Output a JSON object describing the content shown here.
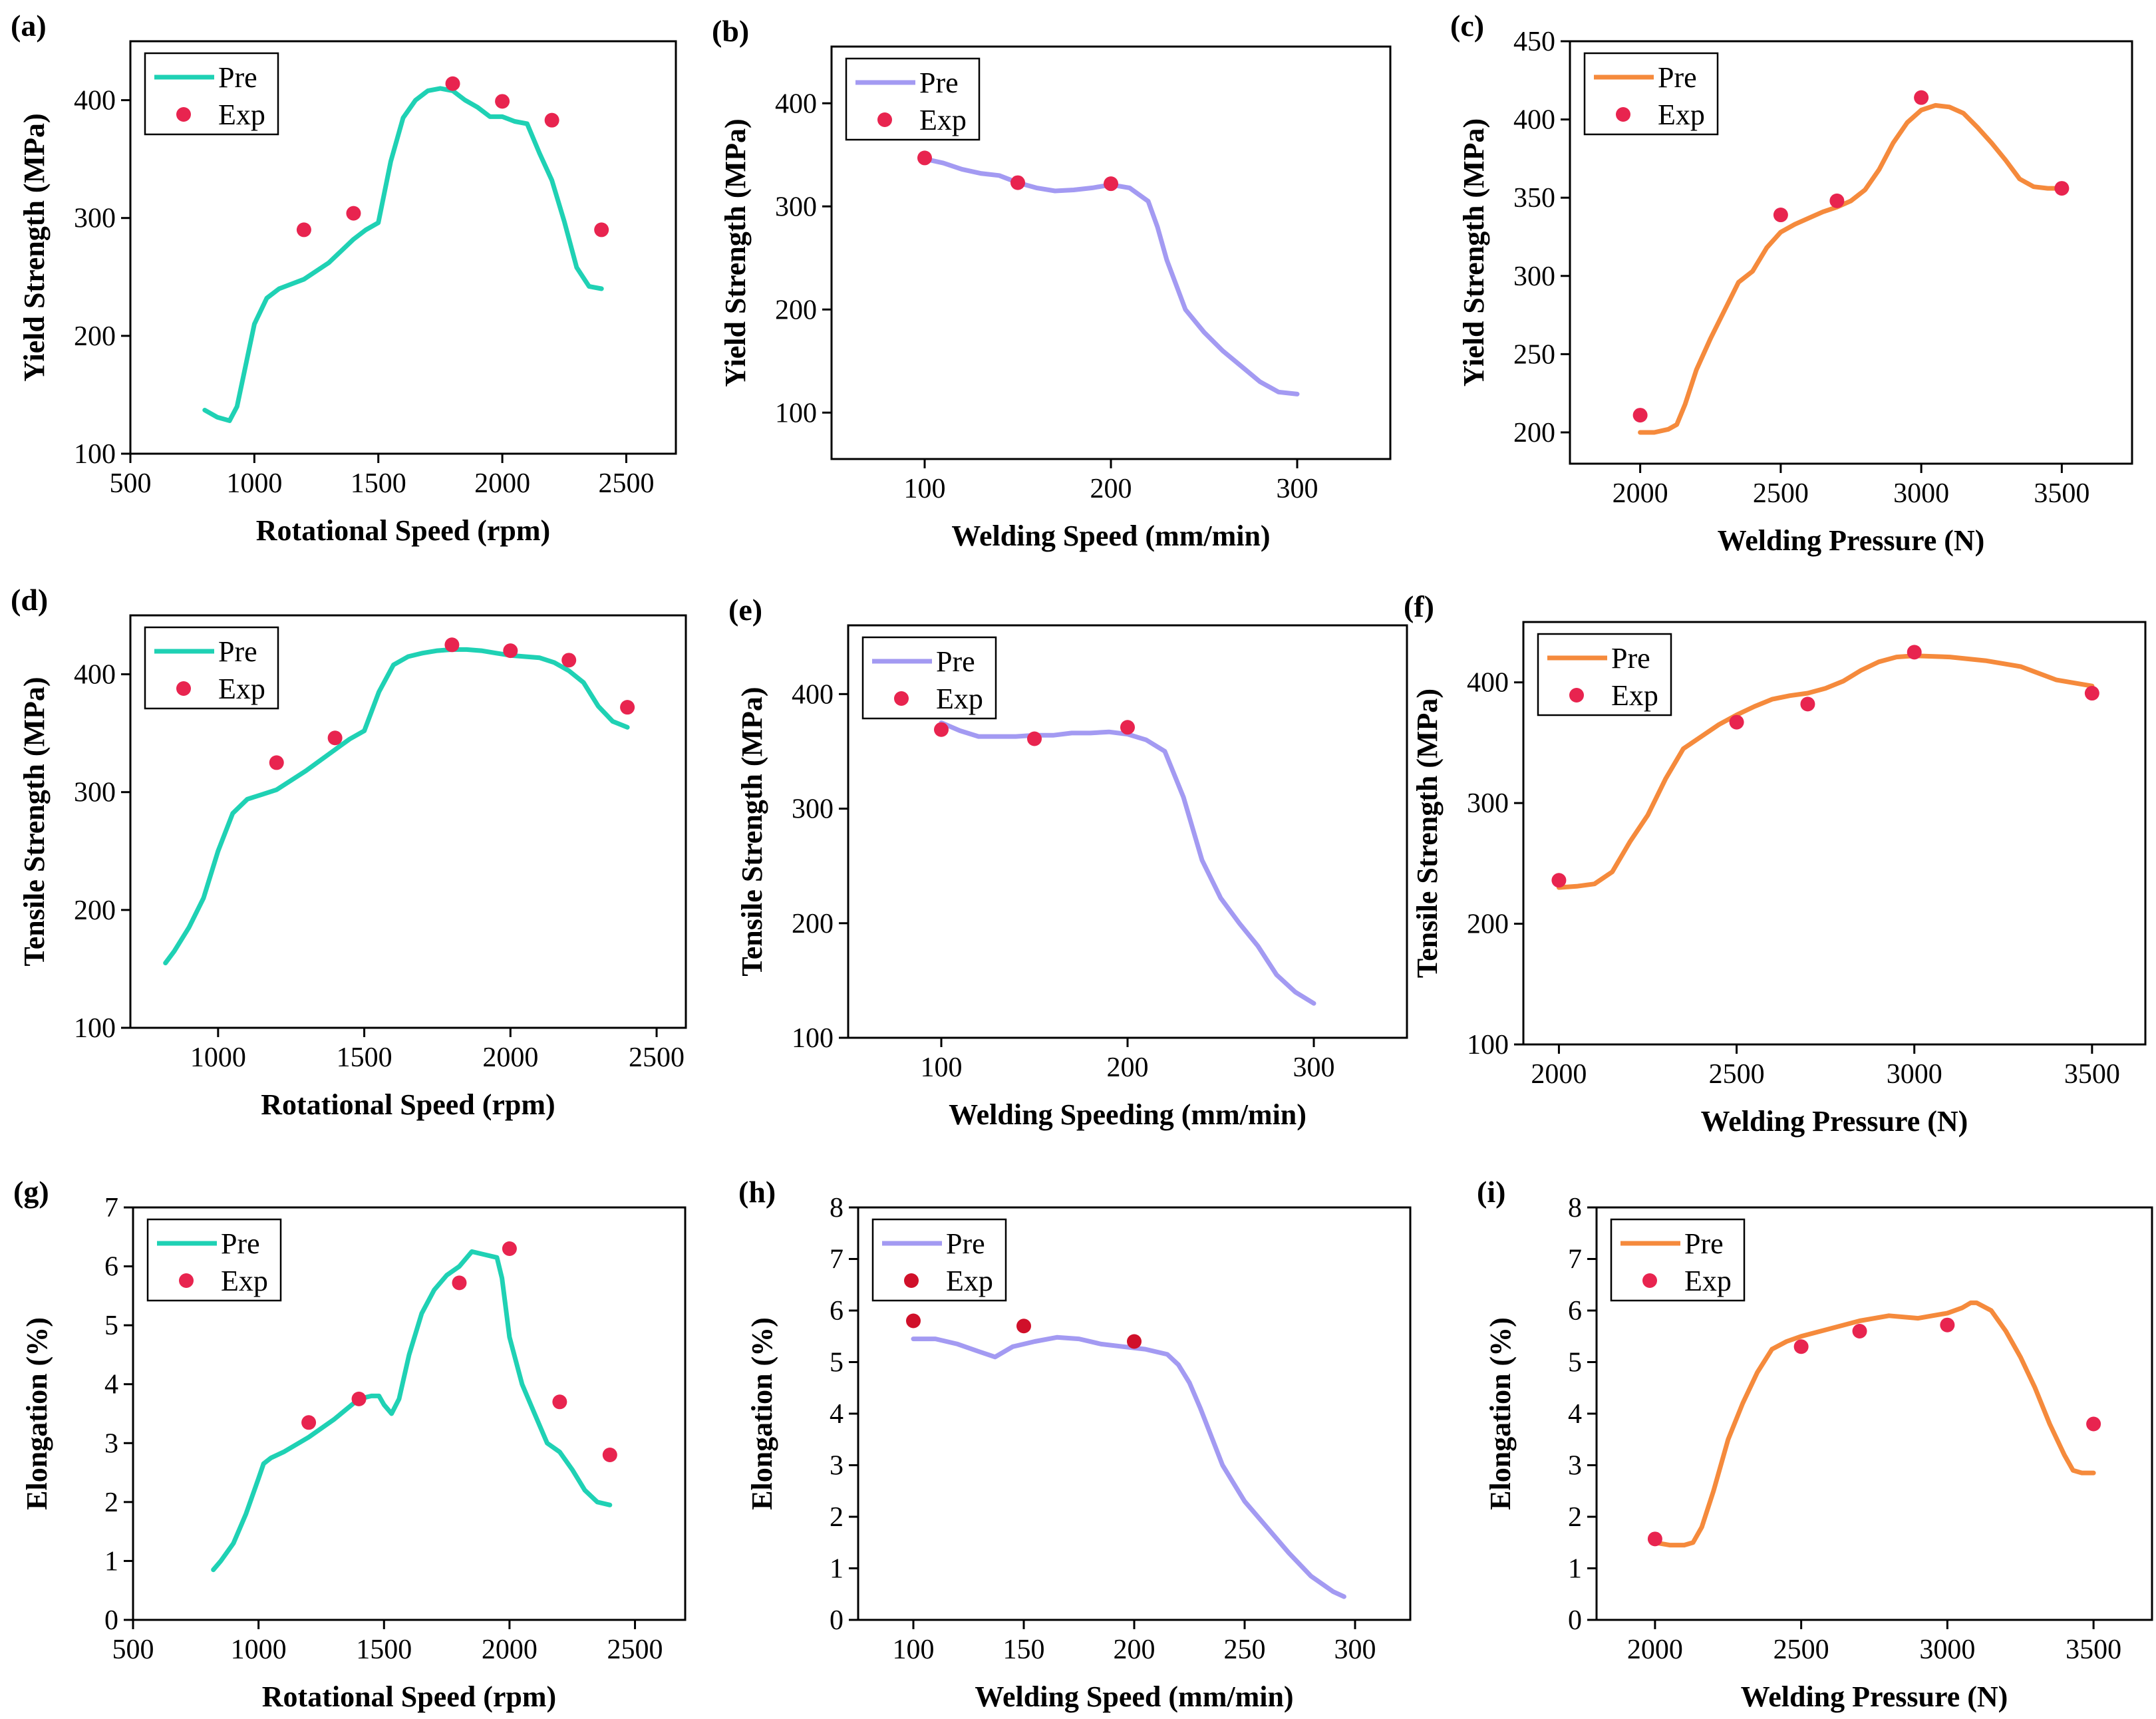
{
  "figure": {
    "colors": {
      "teal": "#1fd1b4",
      "lavender": "#a39af2",
      "orange": "#f58a3c",
      "exp": "#e8244f",
      "exp_dark": "#d0102a"
    },
    "legend": {
      "pre": "Pre",
      "exp": "Exp"
    }
  },
  "chart_data": [
    {
      "panel": "(a)",
      "type": "line+scatter",
      "color": "teal",
      "legend_pos": "top-left",
      "xlabel": "Rotational Speed (rpm)",
      "ylabel": "Yield Strength (MPa)",
      "xlim": [
        500,
        2700
      ],
      "ylim": [
        100,
        450
      ],
      "xticks": [
        500,
        1000,
        1500,
        2000,
        2500
      ],
      "yticks": [
        100,
        200,
        300,
        400
      ],
      "series": [
        {
          "name": "Pre",
          "x": [
            800,
            850,
            900,
            930,
            960,
            1000,
            1050,
            1100,
            1150,
            1200,
            1300,
            1400,
            1450,
            1500,
            1550,
            1600,
            1650,
            1700,
            1750,
            1800,
            1850,
            1900,
            1950,
            2000,
            2050,
            2100,
            2150,
            2200,
            2250,
            2300,
            2350,
            2400
          ],
          "y": [
            137,
            131,
            128,
            140,
            170,
            210,
            232,
            240,
            244,
            248,
            262,
            282,
            290,
            296,
            348,
            385,
            400,
            408,
            410,
            408,
            400,
            394,
            386,
            386,
            382,
            380,
            355,
            332,
            297,
            258,
            242,
            240
          ]
        },
        {
          "name": "Exp",
          "x": [
            1200,
            1400,
            1800,
            2000,
            2200,
            2400
          ],
          "y": [
            290,
            304,
            414,
            399,
            383,
            290
          ]
        }
      ]
    },
    {
      "panel": "(b)",
      "type": "line+scatter",
      "color": "lavender",
      "legend_pos": "top-left",
      "xlabel": "Welding Speed (mm/min)",
      "ylabel": "Yield Strength (MPa)",
      "xlim": [
        50,
        350
      ],
      "ylim": [
        55,
        455
      ],
      "xticks": [
        100,
        200,
        300
      ],
      "yticks": [
        100,
        200,
        300,
        400
      ],
      "series": [
        {
          "name": "Pre",
          "x": [
            100,
            110,
            120,
            130,
            140,
            150,
            160,
            170,
            180,
            190,
            200,
            210,
            220,
            225,
            230,
            240,
            250,
            260,
            270,
            280,
            290,
            300
          ],
          "y": [
            346,
            342,
            336,
            332,
            330,
            323,
            318,
            315,
            316,
            318,
            321,
            318,
            305,
            280,
            248,
            200,
            178,
            160,
            145,
            130,
            120,
            118
          ]
        },
        {
          "name": "Exp",
          "x": [
            100,
            150,
            200
          ],
          "y": [
            347,
            323,
            322
          ]
        }
      ]
    },
    {
      "panel": "(c)",
      "type": "line+scatter",
      "color": "orange",
      "legend_pos": "top-left",
      "xlabel": "Welding Pressure (N)",
      "ylabel": "Yield Strength (MPa)",
      "xlim": [
        1750,
        3750
      ],
      "ylim": [
        180,
        450
      ],
      "xticks": [
        2000,
        2500,
        3000,
        3500
      ],
      "yticks": [
        200,
        250,
        300,
        350,
        400,
        450
      ],
      "series": [
        {
          "name": "Pre",
          "x": [
            2000,
            2050,
            2100,
            2130,
            2160,
            2200,
            2250,
            2300,
            2350,
            2400,
            2450,
            2500,
            2550,
            2600,
            2650,
            2700,
            2750,
            2800,
            2850,
            2900,
            2950,
            3000,
            3050,
            3100,
            3150,
            3200,
            3250,
            3300,
            3350,
            3400,
            3450,
            3480
          ],
          "y": [
            200,
            200,
            202,
            205,
            218,
            240,
            260,
            278,
            296,
            303,
            318,
            328,
            333,
            337,
            341,
            344,
            348,
            355,
            368,
            385,
            398,
            406,
            409,
            408,
            404,
            395,
            385,
            374,
            362,
            357,
            356,
            356
          ]
        },
        {
          "name": "Exp",
          "x": [
            2000,
            2500,
            2700,
            3000,
            3500
          ],
          "y": [
            211,
            339,
            348,
            414,
            356
          ]
        }
      ]
    },
    {
      "panel": "(d)",
      "type": "line+scatter",
      "color": "teal",
      "legend_pos": "top-left",
      "xlabel": "Rotational Speed (rpm)",
      "ylabel": "Tensile Strength (MPa)",
      "xlim": [
        700,
        2600
      ],
      "ylim": [
        100,
        450
      ],
      "xticks": [
        1000,
        1500,
        2000,
        2500
      ],
      "yticks": [
        100,
        200,
        300,
        400
      ],
      "series": [
        {
          "name": "Pre",
          "x": [
            820,
            850,
            900,
            950,
            1000,
            1050,
            1100,
            1150,
            1200,
            1300,
            1400,
            1450,
            1500,
            1550,
            1600,
            1650,
            1700,
            1750,
            1800,
            1850,
            1900,
            1950,
            2000,
            2050,
            2100,
            2150,
            2200,
            2250,
            2300,
            2350,
            2400
          ],
          "y": [
            155,
            165,
            185,
            210,
            250,
            282,
            294,
            298,
            302,
            318,
            336,
            345,
            352,
            385,
            408,
            415,
            418,
            420,
            421,
            421,
            420,
            418,
            416,
            415,
            414,
            410,
            403,
            393,
            373,
            360,
            355
          ]
        },
        {
          "name": "Exp",
          "x": [
            1200,
            1400,
            1800,
            2000,
            2200,
            2400
          ],
          "y": [
            325,
            346,
            425,
            420,
            412,
            372
          ]
        }
      ]
    },
    {
      "panel": "(e)",
      "type": "line+scatter",
      "color": "lavender",
      "legend_pos": "top-left",
      "xlabel": "Welding Speeding (mm/min)",
      "ylabel": "Tensile Strength (MPa)",
      "xlim": [
        50,
        350
      ],
      "ylim": [
        100,
        460
      ],
      "xticks": [
        100,
        200,
        300
      ],
      "yticks": [
        100,
        200,
        300,
        400
      ],
      "series": [
        {
          "name": "Pre",
          "x": [
            100,
            110,
            120,
            130,
            140,
            150,
            160,
            170,
            180,
            190,
            200,
            210,
            220,
            230,
            240,
            250,
            260,
            270,
            280,
            290,
            300
          ],
          "y": [
            375,
            368,
            363,
            363,
            363,
            364,
            364,
            366,
            366,
            367,
            365,
            360,
            350,
            310,
            255,
            222,
            200,
            180,
            155,
            140,
            130
          ]
        },
        {
          "name": "Exp",
          "x": [
            100,
            150,
            200
          ],
          "y": [
            369,
            361,
            371
          ]
        }
      ]
    },
    {
      "panel": "(f)",
      "type": "line+scatter",
      "color": "orange",
      "legend_pos": "top-left",
      "xlabel": "Welding Pressure (N)",
      "ylabel": "Tensile Strength (MPa)",
      "xlim": [
        1900,
        3650
      ],
      "ylim": [
        100,
        450
      ],
      "xticks": [
        2000,
        2500,
        3000,
        3500
      ],
      "yticks": [
        100,
        200,
        300,
        400
      ],
      "series": [
        {
          "name": "Pre",
          "x": [
            2000,
            2050,
            2100,
            2150,
            2200,
            2250,
            2300,
            2350,
            2400,
            2450,
            2500,
            2550,
            2600,
            2650,
            2700,
            2750,
            2800,
            2850,
            2900,
            2950,
            3000,
            3100,
            3200,
            3300,
            3400,
            3500
          ],
          "y": [
            230,
            231,
            233,
            243,
            268,
            290,
            320,
            345,
            355,
            365,
            373,
            380,
            386,
            389,
            391,
            395,
            401,
            410,
            417,
            421,
            422,
            421,
            418,
            413,
            402,
            397
          ]
        },
        {
          "name": "Exp",
          "x": [
            2000,
            2500,
            2700,
            3000,
            3500
          ],
          "y": [
            236,
            367,
            382,
            425,
            391
          ]
        }
      ]
    },
    {
      "panel": "(g)",
      "type": "line+scatter",
      "color": "teal",
      "legend_pos": "top-left",
      "xlabel": "Rotational Speed (rpm)",
      "ylabel": "Elongation (%)",
      "xlim": [
        500,
        2700
      ],
      "ylim": [
        0,
        7
      ],
      "xticks": [
        500,
        1000,
        1500,
        2000,
        2500
      ],
      "yticks": [
        0,
        1,
        2,
        3,
        4,
        5,
        6,
        7
      ],
      "series": [
        {
          "name": "Pre",
          "x": [
            820,
            850,
            900,
            950,
            1000,
            1020,
            1050,
            1100,
            1200,
            1300,
            1400,
            1450,
            1480,
            1500,
            1530,
            1560,
            1600,
            1650,
            1700,
            1750,
            1800,
            1850,
            1900,
            1950,
            1970,
            2000,
            2050,
            2100,
            2150,
            2200,
            2250,
            2300,
            2350,
            2400
          ],
          "y": [
            0.85,
            1.0,
            1.3,
            1.8,
            2.4,
            2.65,
            2.75,
            2.85,
            3.1,
            3.4,
            3.75,
            3.8,
            3.8,
            3.65,
            3.5,
            3.75,
            4.5,
            5.2,
            5.6,
            5.85,
            6.0,
            6.25,
            6.2,
            6.15,
            5.8,
            4.8,
            4.0,
            3.5,
            3.0,
            2.85,
            2.55,
            2.2,
            2.0,
            1.95
          ]
        },
        {
          "name": "Exp",
          "x": [
            1200,
            1400,
            1800,
            2000,
            2200,
            2400
          ],
          "y": [
            3.35,
            3.75,
            5.72,
            6.3,
            3.7,
            2.8
          ]
        }
      ]
    },
    {
      "panel": "(h)",
      "type": "line+scatter",
      "color": "lavender",
      "legend_pos": "top-left",
      "xlabel": "Welding Speed (mm/min)",
      "ylabel": "Elongation (%)",
      "xlim": [
        75,
        325
      ],
      "ylim": [
        0,
        8
      ],
      "xticks": [
        100,
        150,
        200,
        250,
        300
      ],
      "yticks": [
        0,
        1,
        2,
        3,
        4,
        5,
        6,
        7,
        8
      ],
      "series": [
        {
          "name": "Pre",
          "x": [
            100,
            110,
            120,
            130,
            137,
            145,
            155,
            165,
            175,
            185,
            195,
            205,
            215,
            220,
            225,
            230,
            240,
            250,
            260,
            270,
            280,
            290,
            295
          ],
          "y": [
            5.45,
            5.45,
            5.35,
            5.2,
            5.1,
            5.3,
            5.4,
            5.48,
            5.45,
            5.35,
            5.3,
            5.25,
            5.15,
            4.95,
            4.6,
            4.1,
            3.0,
            2.3,
            1.8,
            1.3,
            0.85,
            0.55,
            0.45
          ]
        },
        {
          "name": "Exp",
          "x": [
            100,
            150,
            200
          ],
          "y": [
            5.8,
            5.7,
            5.4
          ]
        }
      ]
    },
    {
      "panel": "(i)",
      "type": "line+scatter",
      "color": "orange",
      "legend_pos": "top-left",
      "xlabel": "Welding Pressure (N)",
      "ylabel": "Elongation (%)",
      "xlim": [
        1800,
        3700
      ],
      "ylim": [
        0,
        8
      ],
      "xticks": [
        2000,
        2500,
        3000,
        3500
      ],
      "yticks": [
        0,
        1,
        2,
        3,
        4,
        5,
        6,
        7,
        8
      ],
      "series": [
        {
          "name": "Pre",
          "x": [
            2000,
            2050,
            2100,
            2130,
            2160,
            2200,
            2250,
            2300,
            2350,
            2400,
            2450,
            2500,
            2600,
            2700,
            2800,
            2900,
            3000,
            3050,
            3080,
            3100,
            3150,
            3200,
            3250,
            3300,
            3350,
            3400,
            3430,
            3460,
            3500
          ],
          "y": [
            1.5,
            1.45,
            1.45,
            1.5,
            1.8,
            2.5,
            3.5,
            4.2,
            4.8,
            5.25,
            5.4,
            5.5,
            5.65,
            5.8,
            5.9,
            5.85,
            5.95,
            6.05,
            6.15,
            6.15,
            6.0,
            5.6,
            5.1,
            4.5,
            3.8,
            3.2,
            2.9,
            2.85,
            2.85
          ]
        },
        {
          "name": "Exp",
          "x": [
            2000,
            2500,
            2700,
            3000,
            3500
          ],
          "y": [
            1.57,
            5.3,
            5.6,
            5.72,
            3.8
          ]
        }
      ]
    }
  ]
}
